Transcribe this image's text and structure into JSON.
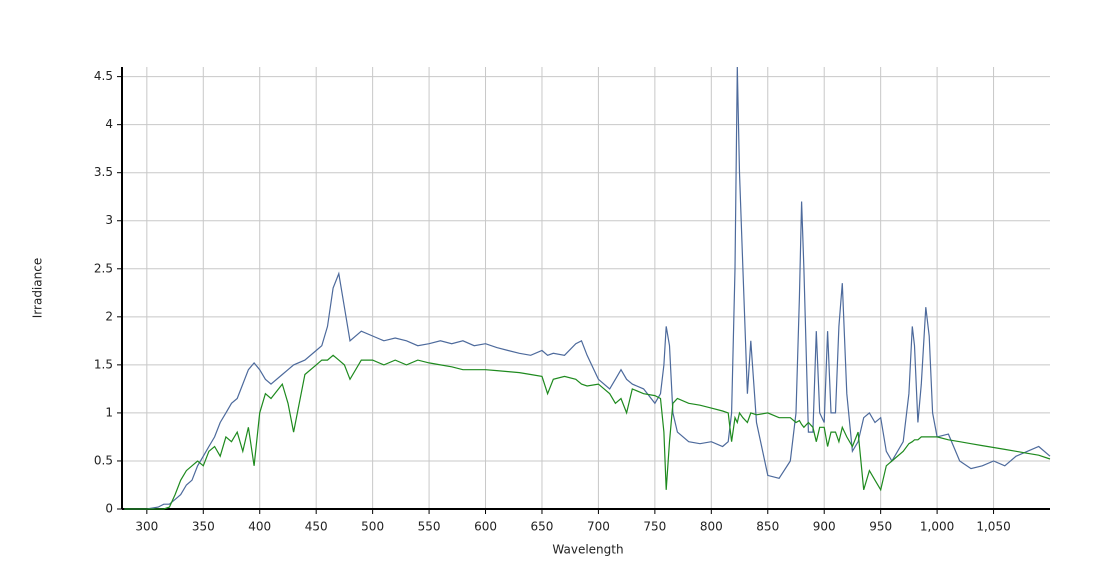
{
  "chart_data": {
    "type": "line",
    "x_label": "Wavelength",
    "y_label": "Irradiance",
    "xlim": [
      278,
      1100
    ],
    "ylim": [
      0,
      4.6
    ],
    "xticks": [
      300,
      350,
      400,
      450,
      500,
      550,
      600,
      650,
      700,
      750,
      800,
      850,
      900,
      950,
      {
        "value": 1000,
        "label": "1,000"
      },
      {
        "value": 1050,
        "label": "1,050"
      }
    ],
    "yticks": [
      0,
      0.5,
      1,
      1.5,
      2,
      2.5,
      3,
      3.5,
      4,
      4.5
    ],
    "grid": true,
    "x": [
      280,
      290,
      300,
      310,
      315,
      320,
      325,
      330,
      335,
      340,
      345,
      350,
      355,
      360,
      365,
      370,
      375,
      380,
      385,
      390,
      395,
      400,
      405,
      410,
      420,
      425,
      430,
      440,
      450,
      455,
      460,
      465,
      470,
      475,
      480,
      490,
      500,
      510,
      520,
      530,
      540,
      550,
      560,
      570,
      580,
      590,
      600,
      610,
      620,
      630,
      640,
      650,
      655,
      660,
      670,
      680,
      685,
      690,
      700,
      710,
      715,
      720,
      725,
      730,
      740,
      750,
      755,
      758,
      760,
      763,
      766,
      770,
      780,
      790,
      800,
      810,
      815,
      818,
      821,
      823,
      825,
      828,
      832,
      835,
      840,
      850,
      860,
      870,
      875,
      878,
      880,
      882,
      886,
      890,
      893,
      896,
      900,
      903,
      906,
      910,
      913,
      916,
      920,
      925,
      930,
      935,
      940,
      945,
      950,
      955,
      960,
      970,
      975,
      978,
      980,
      983,
      986,
      990,
      993,
      996,
      1000,
      1010,
      1020,
      1030,
      1040,
      1050,
      1060,
      1070,
      1080,
      1090,
      1100
    ],
    "series": [
      {
        "color": "#4d6a9c",
        "values": [
          0,
          0,
          0,
          0.02,
          0.05,
          0.05,
          0.1,
          0.15,
          0.25,
          0.3,
          0.45,
          0.55,
          0.65,
          0.75,
          0.9,
          1.0,
          1.1,
          1.15,
          1.3,
          1.45,
          1.52,
          1.45,
          1.35,
          1.3,
          1.4,
          1.45,
          1.5,
          1.55,
          1.65,
          1.7,
          1.9,
          2.3,
          2.45,
          2.1,
          1.75,
          1.85,
          1.8,
          1.75,
          1.78,
          1.75,
          1.7,
          1.72,
          1.75,
          1.72,
          1.75,
          1.7,
          1.72,
          1.68,
          1.65,
          1.62,
          1.6,
          1.65,
          1.6,
          1.62,
          1.6,
          1.72,
          1.75,
          1.6,
          1.35,
          1.25,
          1.35,
          1.45,
          1.35,
          1.3,
          1.25,
          1.1,
          1.2,
          1.5,
          1.9,
          1.7,
          1.0,
          0.8,
          0.7,
          0.68,
          0.7,
          0.65,
          0.7,
          1.0,
          2.5,
          4.6,
          3.5,
          2.5,
          1.2,
          1.75,
          0.9,
          0.35,
          0.32,
          0.5,
          1.0,
          2.2,
          3.2,
          2.5,
          0.8,
          0.8,
          1.85,
          1.0,
          0.9,
          1.85,
          1.0,
          1.0,
          1.9,
          2.35,
          1.2,
          0.6,
          0.7,
          0.95,
          1.0,
          0.9,
          0.95,
          0.6,
          0.5,
          0.7,
          1.2,
          1.9,
          1.7,
          0.9,
          1.3,
          2.1,
          1.8,
          1.0,
          0.75,
          0.78,
          0.5,
          0.42,
          0.45,
          0.5,
          0.45,
          0.55,
          0.6,
          0.65,
          0.55
        ]
      },
      {
        "color": "#1e8a1e",
        "values": [
          0,
          0,
          0,
          0,
          0,
          0.02,
          0.15,
          0.3,
          0.4,
          0.45,
          0.5,
          0.45,
          0.6,
          0.65,
          0.55,
          0.75,
          0.7,
          0.8,
          0.6,
          0.85,
          0.45,
          1.0,
          1.2,
          1.15,
          1.3,
          1.1,
          0.8,
          1.4,
          1.5,
          1.55,
          1.55,
          1.6,
          1.55,
          1.5,
          1.35,
          1.55,
          1.55,
          1.5,
          1.55,
          1.5,
          1.55,
          1.52,
          1.5,
          1.48,
          1.45,
          1.45,
          1.45,
          1.44,
          1.43,
          1.42,
          1.4,
          1.38,
          1.2,
          1.35,
          1.38,
          1.35,
          1.3,
          1.28,
          1.3,
          1.2,
          1.1,
          1.15,
          1.0,
          1.25,
          1.2,
          1.18,
          1.15,
          0.8,
          0.2,
          0.7,
          1.1,
          1.15,
          1.1,
          1.08,
          1.05,
          1.02,
          1.0,
          0.7,
          0.95,
          0.9,
          1.0,
          0.95,
          0.9,
          1.0,
          0.98,
          1.0,
          0.95,
          0.95,
          0.9,
          0.92,
          0.88,
          0.85,
          0.9,
          0.85,
          0.7,
          0.85,
          0.85,
          0.65,
          0.8,
          0.8,
          0.7,
          0.85,
          0.75,
          0.65,
          0.8,
          0.2,
          0.4,
          0.3,
          0.2,
          0.45,
          0.5,
          0.6,
          0.68,
          0.7,
          0.72,
          0.72,
          0.75,
          0.75,
          0.75,
          0.75,
          0.75,
          0.72,
          0.7,
          0.68,
          0.66,
          0.64,
          0.62,
          0.6,
          0.58,
          0.56,
          0.52
        ]
      }
    ]
  }
}
